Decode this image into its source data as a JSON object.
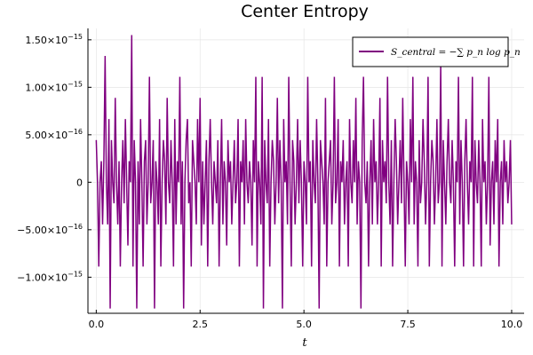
{
  "chart_data": {
    "type": "line",
    "title": "Center Entropy",
    "xlabel": "t",
    "ylabel": "",
    "xlim": [
      -0.2,
      10.3
    ],
    "ylim": [
      -1.38e-15,
      1.62e-15
    ],
    "x_ticks": [
      0.0,
      2.5,
      5.0,
      7.5,
      10.0
    ],
    "x_tick_labels": [
      "0.0",
      "2.5",
      "5.0",
      "7.5",
      "10.0"
    ],
    "y_ticks": [
      -1e-15,
      -5e-16,
      0,
      5e-16,
      1e-15,
      1.5e-15
    ],
    "y_tick_labels": [
      {
        "mant": "−1.00×10",
        "exp": "−15"
      },
      {
        "mant": "−5.00×10",
        "exp": "−16"
      },
      {
        "mant": "0",
        "exp": ""
      },
      {
        "mant": "5.00×10",
        "exp": "−16"
      },
      {
        "mant": "1.00×10",
        "exp": "−15"
      },
      {
        "mant": "1.50×10",
        "exp": "−15"
      }
    ],
    "grid": true,
    "legend_position": "top-right",
    "series": [
      {
        "name": "S_central = −∑ p_n log p_n",
        "color": "#800080",
        "x_start": 0.0,
        "x_end": 10.0,
        "values_e16": [
          4.44,
          0,
          -8.88,
          0,
          2.22,
          -4.44,
          2.22,
          13.3,
          0,
          -4.44,
          6.66,
          -13.3,
          4.44,
          0,
          -2.22,
          8.88,
          0,
          -4.44,
          2.22,
          -8.88,
          0,
          4.44,
          -2.22,
          6.66,
          0,
          -6.66,
          2.22,
          0,
          15.5,
          -8.88,
          4.44,
          0,
          -13.3,
          2.22,
          -4.44,
          6.66,
          0,
          -8.88,
          2.22,
          4.44,
          -4.44,
          0,
          11.1,
          -2.22,
          0,
          4.44,
          -13.3,
          2.22,
          0,
          -4.44,
          6.66,
          -8.88,
          0,
          4.44,
          2.22,
          -4.44,
          8.88,
          0,
          -2.22,
          4.44,
          0,
          -8.88,
          6.66,
          -4.44,
          2.22,
          0,
          11.1,
          -4.44,
          2.22,
          -13.3,
          0,
          4.44,
          6.66,
          -2.22,
          0,
          -8.88,
          4.44,
          2.22,
          0,
          -4.44,
          6.66,
          0,
          8.88,
          -6.66,
          2.22,
          -4.44,
          0,
          4.44,
          -8.88,
          2.22,
          6.66,
          0,
          -4.44,
          2.22,
          0,
          -2.22,
          4.44,
          -8.88,
          0,
          6.66,
          -4.44,
          2.22,
          0,
          -6.66,
          4.44,
          0,
          2.22,
          -4.44,
          0,
          4.44,
          -2.22,
          0,
          6.66,
          -8.88,
          2.22,
          0,
          4.44,
          -4.44,
          6.66,
          0,
          -2.22,
          2.22,
          0,
          -6.66,
          4.44,
          0,
          11.1,
          -8.88,
          2.22,
          0,
          -4.44,
          11.1,
          -13.3,
          4.44,
          0,
          -2.22,
          6.66,
          -8.88,
          0,
          4.44,
          2.22,
          -4.44,
          0,
          8.88,
          -2.22,
          4.44,
          0,
          -13.3,
          6.66,
          0,
          2.22,
          -4.44,
          11.1,
          0,
          -8.88,
          4.44,
          2.22,
          -4.44,
          0,
          6.66,
          -2.22,
          4.44,
          0,
          -8.88,
          2.22,
          0,
          -4.44,
          11.1,
          0,
          2.22,
          -8.88,
          4.44,
          0,
          -2.22,
          6.66,
          0,
          -13.3,
          4.44,
          2.22,
          0,
          -4.44,
          8.88,
          -8.88,
          0,
          2.22,
          4.44,
          -4.44,
          0,
          11.1,
          -2.22,
          0,
          6.66,
          -8.88,
          2.22,
          0,
          4.44,
          -4.44,
          0,
          2.22,
          -8.88,
          6.66,
          0,
          -2.22,
          4.44,
          0,
          8.88,
          -4.44,
          2.22,
          0,
          -13.3,
          4.44,
          11.1,
          0,
          -2.22,
          2.22,
          -8.88,
          0,
          4.44,
          -4.44,
          6.66,
          0,
          2.22,
          -4.44,
          0,
          8.88,
          -8.88,
          4.44,
          0,
          2.22,
          -2.22,
          11.1,
          0,
          -4.44,
          4.44,
          -8.88,
          0,
          6.66,
          2.22,
          -4.44,
          0,
          4.44,
          -2.22,
          8.88,
          0,
          -8.88,
          2.22,
          0,
          -4.44,
          6.66,
          0,
          11.1,
          -4.44,
          2.22,
          0,
          -8.88,
          4.44,
          -2.22,
          0,
          6.66,
          2.22,
          -4.44,
          0,
          11.1,
          -8.88,
          0,
          4.44,
          2.22,
          -4.44,
          0,
          6.66,
          -2.22,
          0,
          12.4,
          -8.88,
          4.44,
          0,
          -4.44,
          2.22,
          6.66,
          0,
          -2.22,
          4.44,
          0,
          -8.88,
          2.22,
          0,
          11.1,
          -4.44,
          4.44,
          0,
          -8.88,
          2.22,
          6.66,
          0,
          -4.44,
          2.22,
          0,
          11.1,
          -8.88,
          4.44,
          0,
          -2.22,
          4.44,
          0,
          -8.88,
          6.66,
          0,
          2.22,
          -4.44,
          0,
          11.1,
          -6.66,
          0,
          2.22,
          -4.44,
          4.44,
          0,
          6.66,
          -8.88,
          0,
          2.22,
          -4.44,
          4.44,
          0,
          2.22,
          -2.22,
          0,
          4.44,
          -4.44
        ]
      }
    ]
  }
}
